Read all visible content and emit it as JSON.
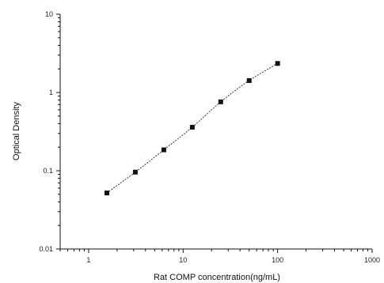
{
  "chart_data": {
    "type": "scatter",
    "title": "",
    "xlabel": "Rat COMP concentration(ng/mL)",
    "ylabel": "Optical Density",
    "x_scale": "log",
    "y_scale": "log",
    "xlim": [
      0.5,
      1000
    ],
    "ylim": [
      0.01,
      10
    ],
    "x_tick_labels": [
      "1",
      "10",
      "100",
      "1000"
    ],
    "y_tick_labels": [
      "0.01",
      "0.1",
      "1",
      "10"
    ],
    "grid": false,
    "legend": "none",
    "series": [
      {
        "x": [
          1.56,
          3.12,
          6.25,
          12.5,
          25,
          50,
          100
        ],
        "y": [
          0.052,
          0.096,
          0.185,
          0.36,
          0.76,
          1.42,
          2.35
        ],
        "marker": "square",
        "line": "dashed fit curve"
      }
    ],
    "colors": {
      "marker": "#111111",
      "line": "#222222",
      "axis": "#111111"
    }
  }
}
